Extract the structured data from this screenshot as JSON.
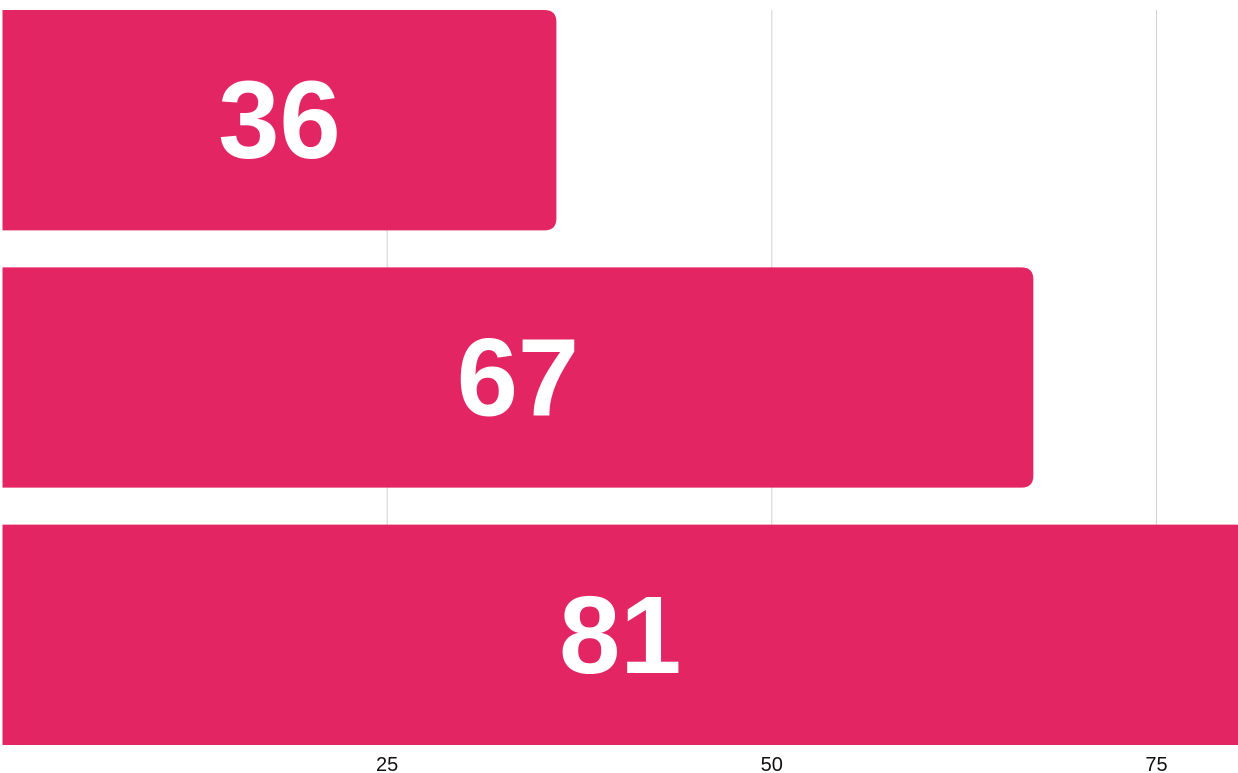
{
  "chart_data": {
    "type": "bar",
    "orientation": "horizontal",
    "values": [
      36,
      67,
      81
    ],
    "color": "#e42564",
    "xlim": [
      0,
      80.3
    ],
    "xticks": [
      25,
      50,
      75
    ],
    "grid": true
  }
}
